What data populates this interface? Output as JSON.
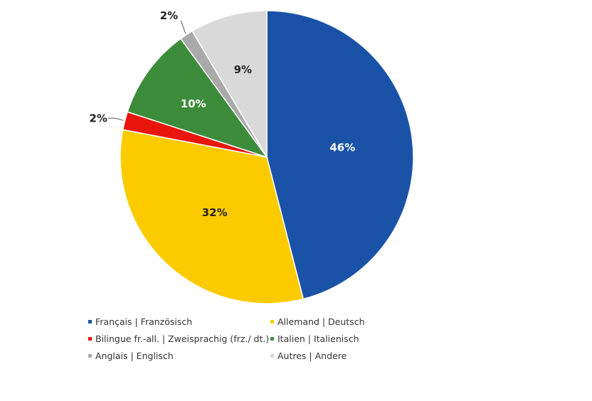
{
  "chart_data": {
    "type": "pie",
    "title": "",
    "slices": [
      {
        "label": "Français | Französisch",
        "value": 46,
        "display": "46%",
        "color": "#1a52a8",
        "text_color": "#ffffff"
      },
      {
        "label": "Allemand | Deutsch",
        "value": 32,
        "display": "32%",
        "color": "#fbcb00",
        "text_color": "#222222"
      },
      {
        "label": "Bilingue fr.-all.  | Zweisprachig (frz./ dt.)",
        "value": 2,
        "display": "2%",
        "color": "#e8160d",
        "text_color": "#222222"
      },
      {
        "label": "Italien | Italienisch",
        "value": 10,
        "display": "10%",
        "color": "#3d8c3c",
        "text_color": "#ffffff"
      },
      {
        "label": "Anglais | Englisch",
        "value": 1.5,
        "display": "2%",
        "color": "#a9a9a9",
        "text_color": "#222222"
      },
      {
        "label": "Autres | Andere",
        "value": 8.5,
        "display": "9%",
        "color": "#d9d9d9",
        "text_color": "#222222"
      }
    ],
    "legend": {
      "position": "bottom",
      "order": [
        0,
        1,
        2,
        3,
        4,
        5
      ]
    }
  }
}
